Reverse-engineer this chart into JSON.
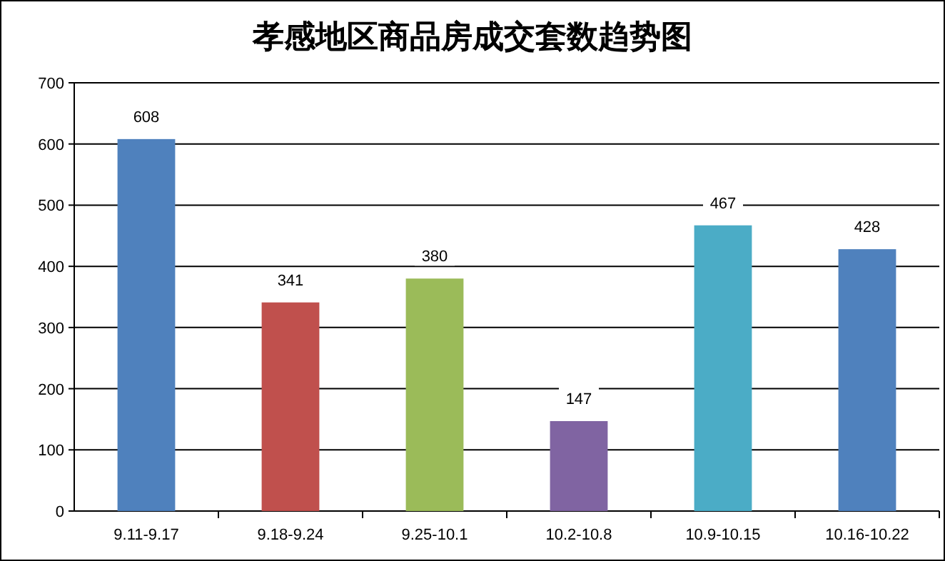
{
  "chart_data": {
    "type": "bar",
    "title": "孝感地区商品房成交套数趋势图",
    "categories": [
      "9.11-9.17",
      "9.18-9.24",
      "9.25-10.1",
      "10.2-10.8",
      "10.9-10.15",
      "10.16-10.22"
    ],
    "values": [
      608,
      341,
      380,
      147,
      467,
      428
    ],
    "colors": [
      "#4f81bd",
      "#c0504d",
      "#9bbb59",
      "#8064a2",
      "#4bacc6",
      "#4f81bd"
    ],
    "ylim": [
      0,
      700
    ],
    "yticks": [
      0,
      100,
      200,
      300,
      400,
      500,
      600,
      700
    ],
    "grid": "y",
    "data_labels": true
  }
}
